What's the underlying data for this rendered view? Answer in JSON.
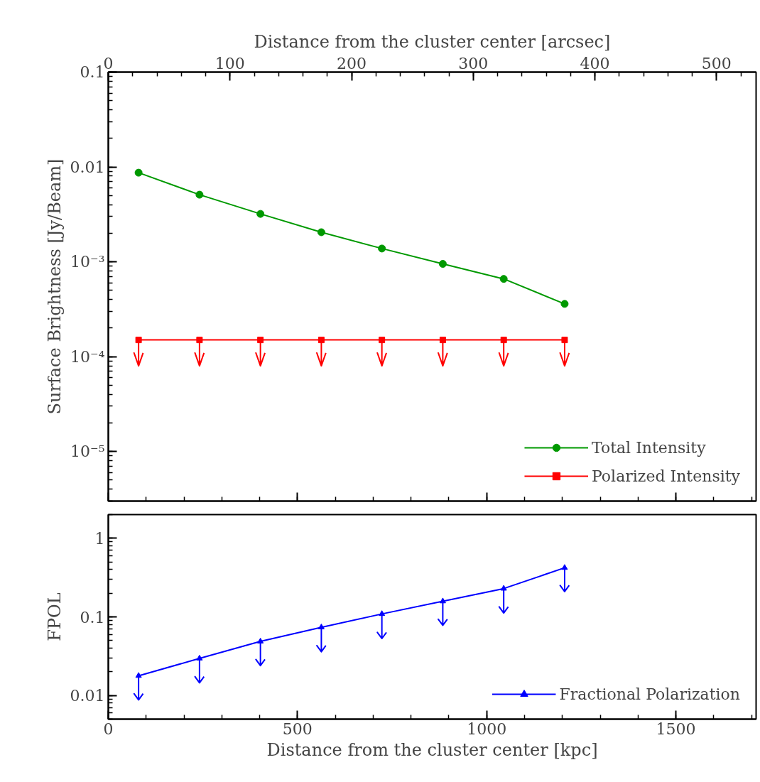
{
  "chart_data": [
    {
      "type": "line",
      "x2label": "Distance from the cluster center [arcsec]",
      "ylabel": "Surface Brightness [Jy/Beam]",
      "x": [
        80,
        241,
        402,
        563,
        723,
        884,
        1045,
        1206
      ],
      "xlim": [
        0,
        1712
      ],
      "xticks": [
        0,
        500,
        1000,
        1500
      ],
      "tick_labels": "y",
      "x2lim": [
        0,
        532.5
      ],
      "x2ticks": [
        0,
        100,
        200,
        300,
        400,
        500
      ],
      "ylim": [
        3e-06,
        0.1
      ],
      "yticks": [
        {
          "value": 1e-05,
          "label": "10⁻⁵"
        },
        {
          "value": 0.0001,
          "label": "10⁻⁴"
        },
        {
          "value": 0.001,
          "label": "10⁻³"
        },
        0.01,
        0.1
      ],
      "log": "y",
      "grid": false,
      "legend": "bottom right",
      "series": [
        {
          "name": "Total Intensity",
          "color": "#009900",
          "marker": "circle",
          "values": [
            0.0087,
            0.0051,
            0.0032,
            0.00205,
            0.00138,
            0.00095,
            0.00066,
            0.00036
          ]
        },
        {
          "name": "Polarized Intensity",
          "color": "#ff0000",
          "marker": "square",
          "values": [
            0.00015,
            0.00015,
            0.00015,
            0.00015,
            0.00015,
            0.00015,
            0.00015,
            0.00015
          ],
          "errors": [
            [
              8e-05,
              0.00015
            ],
            [
              8e-05,
              0.00015
            ],
            [
              8e-05,
              0.00015
            ],
            [
              8e-05,
              0.00015
            ],
            [
              8e-05,
              0.00015
            ],
            [
              8e-05,
              0.00015
            ],
            [
              8e-05,
              0.00015
            ],
            [
              8e-05,
              0.00015
            ]
          ]
        }
      ]
    },
    {
      "type": "line",
      "xlabel": "Distance from the cluster center [kpc]",
      "ylabel": "FPOL",
      "x": [
        80,
        241,
        402,
        563,
        723,
        884,
        1045,
        1206
      ],
      "xlim": [
        0,
        1712
      ],
      "xticks": [
        0,
        500,
        1000,
        1500
      ],
      "ylim": [
        0.005,
        2
      ],
      "yticks": [
        0.01,
        0.1,
        1
      ],
      "log": "y",
      "grid": false,
      "legend": "bottom right",
      "series": [
        {
          "name": "Fractional Polarization",
          "color": "#0000ff",
          "marker": "triangle",
          "values": [
            0.0178,
            0.0296,
            0.0487,
            0.0737,
            0.109,
            0.158,
            0.229,
            0.421
          ],
          "errors": [
            [
              0.0088,
              0.0178
            ],
            [
              0.0145,
              0.0296
            ],
            [
              0.024,
              0.0487
            ],
            [
              0.036,
              0.0737
            ],
            [
              0.053,
              0.109
            ],
            [
              0.078,
              0.158
            ],
            [
              0.112,
              0.229
            ],
            [
              0.21,
              0.421
            ]
          ]
        }
      ]
    }
  ]
}
